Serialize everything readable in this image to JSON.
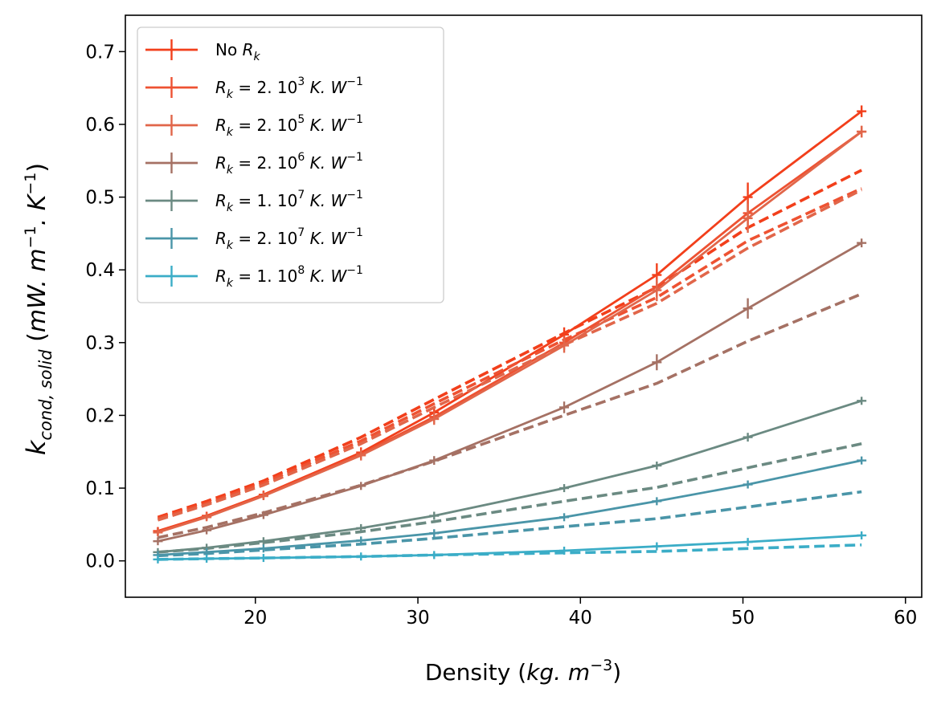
{
  "chart_data": {
    "type": "line",
    "xlabel": "Density (kg.m⁻³)",
    "ylabel": "k_cond,solid (mW.m⁻¹.K⁻¹)",
    "xlim": [
      12,
      61
    ],
    "ylim": [
      -0.05,
      0.75
    ],
    "xticks": [
      20,
      30,
      40,
      50,
      60
    ],
    "yticks": [
      0.0,
      0.1,
      0.2,
      0.3,
      0.4,
      0.5,
      0.6,
      0.7
    ],
    "legend_position": "top-left",
    "x": [
      14,
      17,
      20.5,
      26.5,
      31,
      39,
      44.7,
      50.3,
      57.3
    ],
    "series": [
      {
        "name": "No R_k",
        "legend": {
          "main": "No ",
          "sym": "R",
          "sub": "k",
          "sup": ""
        },
        "color": "#F23F1B",
        "values": [
          0.041,
          0.062,
          0.091,
          0.149,
          0.204,
          0.311,
          0.393,
          0.5,
          0.618
        ],
        "yerr": [
          0.004,
          0.004,
          0.005,
          0.007,
          0.008,
          0.01,
          0.016,
          0.02,
          0.008
        ],
        "model": [
          0.06,
          0.082,
          0.11,
          0.17,
          0.222,
          0.313,
          0.376,
          0.458,
          0.537
        ]
      },
      {
        "name": "R_k = 2.10^3 K.W^-1",
        "legend": {
          "main": "= 2. 10",
          "sym": "R",
          "sub": "k",
          "sup": "3"
        },
        "color": "#EE5232",
        "values": [
          0.04,
          0.061,
          0.09,
          0.147,
          0.198,
          0.3,
          0.377,
          0.478,
          0.59
        ],
        "yerr": [
          0.004,
          0.004,
          0.005,
          0.007,
          0.008,
          0.01,
          0.015,
          0.02,
          0.008
        ],
        "model": [
          0.058,
          0.079,
          0.107,
          0.165,
          0.216,
          0.304,
          0.362,
          0.44,
          0.512
        ]
      },
      {
        "name": "R_k = 2.10^5 K.W^-1",
        "legend": {
          "main": "= 2. 10",
          "sym": "R",
          "sub": "k",
          "sup": "5"
        },
        "color": "#E1664A",
        "values": [
          0.039,
          0.06,
          0.089,
          0.145,
          0.195,
          0.296,
          0.372,
          0.471,
          0.59
        ],
        "yerr": [
          0.004,
          0.004,
          0.005,
          0.007,
          0.008,
          0.01,
          0.015,
          0.02,
          0.008
        ],
        "model": [
          0.056,
          0.077,
          0.104,
          0.161,
          0.211,
          0.297,
          0.354,
          0.43,
          0.51
        ]
      },
      {
        "name": "R_k = 2.10^6 K.W^-1",
        "legend": {
          "main": "= 2. 10",
          "sym": "R",
          "sub": "k",
          "sup": "6"
        },
        "color": "#A57164",
        "values": [
          0.027,
          0.042,
          0.063,
          0.103,
          0.138,
          0.211,
          0.273,
          0.347,
          0.437
        ],
        "yerr": [
          0.003,
          0.003,
          0.004,
          0.005,
          0.006,
          0.008,
          0.011,
          0.014,
          0.006
        ],
        "model": [
          0.032,
          0.046,
          0.066,
          0.104,
          0.137,
          0.2,
          0.244,
          0.302,
          0.367
        ]
      },
      {
        "name": "R_k = 1.10^7 K.W^-1",
        "legend": {
          "main": "= 1. 10",
          "sym": "R",
          "sub": "k",
          "sup": "7"
        },
        "color": "#6B8A82",
        "values": [
          0.012,
          0.018,
          0.027,
          0.045,
          0.062,
          0.1,
          0.131,
          0.17,
          0.22
        ],
        "yerr": [
          0.002,
          0.002,
          0.002,
          0.003,
          0.003,
          0.004,
          0.005,
          0.006,
          0.004
        ],
        "model": [
          0.012,
          0.017,
          0.025,
          0.04,
          0.054,
          0.082,
          0.101,
          0.128,
          0.161
        ]
      },
      {
        "name": "R_k = 2.10^7 K.W^-1",
        "legend": {
          "main": "= 2. 10",
          "sym": "R",
          "sub": "k",
          "sup": "7"
        },
        "color": "#4A95A8",
        "values": [
          0.008,
          0.012,
          0.017,
          0.028,
          0.038,
          0.06,
          0.082,
          0.105,
          0.138
        ],
        "yerr": [
          0.002,
          0.002,
          0.002,
          0.002,
          0.002,
          0.003,
          0.004,
          0.004,
          0.003
        ],
        "model": [
          0.007,
          0.01,
          0.015,
          0.023,
          0.031,
          0.047,
          0.058,
          0.074,
          0.095
        ]
      },
      {
        "name": "R_k = 1.10^8 K.W^-1",
        "legend": {
          "main": "= 1. 10",
          "sym": "R",
          "sub": "k",
          "sup": "8"
        },
        "color": "#3BADC7",
        "values": [
          0.002,
          0.003,
          0.004,
          0.006,
          0.008,
          0.014,
          0.02,
          0.026,
          0.035
        ],
        "yerr": [
          0.001,
          0.001,
          0.001,
          0.001,
          0.001,
          0.001,
          0.002,
          0.002,
          0.002
        ],
        "model": [
          0.002,
          0.003,
          0.004,
          0.006,
          0.008,
          0.011,
          0.013,
          0.017,
          0.022
        ]
      }
    ]
  }
}
